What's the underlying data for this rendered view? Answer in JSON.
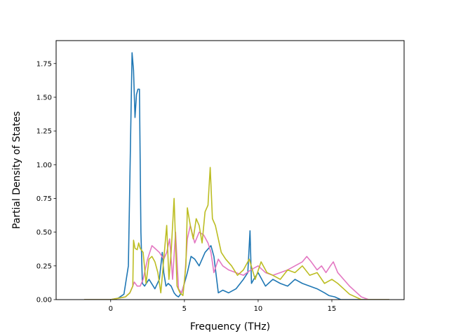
{
  "chart_data": {
    "type": "line",
    "title": "",
    "xlabel": "Frequency (THz)",
    "ylabel": "Partial Density of States",
    "xlim": [
      -3.7,
      19.9
    ],
    "ylim": [
      0.0,
      1.92
    ],
    "xticks": [
      0,
      5,
      10,
      15
    ],
    "yticks": [
      0.0,
      0.25,
      0.5,
      0.75,
      1.0,
      1.25,
      1.5,
      1.75
    ],
    "xtick_labels": [
      "0",
      "5",
      "10",
      "15"
    ],
    "ytick_labels": [
      "0.00",
      "0.25",
      "0.50",
      "0.75",
      "1.00",
      "1.25",
      "1.50",
      "1.75"
    ],
    "grid": false,
    "legend": "none",
    "series": [
      {
        "color": "#1f77b4",
        "x": [
          -1.8,
          0,
          0.5,
          0.9,
          1.2,
          1.35,
          1.45,
          1.55,
          1.65,
          1.75,
          1.85,
          1.95,
          2.05,
          2.15,
          2.3,
          2.6,
          3.0,
          3.3,
          3.5,
          3.6,
          3.75,
          3.9,
          4.1,
          4.3,
          4.45,
          4.6,
          4.8,
          5.0,
          5.2,
          5.45,
          5.7,
          6.0,
          6.4,
          6.8,
          7.0,
          7.3,
          7.6,
          8.0,
          8.5,
          9.0,
          9.3,
          9.45,
          9.55,
          9.7,
          10.0,
          10.5,
          11.0,
          11.5,
          12.0,
          12.5,
          13.0,
          13.5,
          14.0,
          14.5,
          14.8,
          15.2,
          15.6,
          16.0,
          16.5,
          17.0,
          17.5,
          18.0,
          18.9
        ],
        "y": [
          0.0,
          0.0,
          0.01,
          0.04,
          0.25,
          1.2,
          1.83,
          1.7,
          1.35,
          1.52,
          1.56,
          1.56,
          0.5,
          0.12,
          0.1,
          0.15,
          0.08,
          0.15,
          0.35,
          0.2,
          0.1,
          0.12,
          0.1,
          0.05,
          0.03,
          0.02,
          0.05,
          0.12,
          0.2,
          0.32,
          0.3,
          0.25,
          0.35,
          0.4,
          0.32,
          0.05,
          0.07,
          0.05,
          0.08,
          0.15,
          0.2,
          0.51,
          0.12,
          0.15,
          0.2,
          0.1,
          0.15,
          0.12,
          0.1,
          0.15,
          0.12,
          0.1,
          0.08,
          0.05,
          0.03,
          0.02,
          0.0,
          0.0,
          0.0,
          0.0,
          0.0,
          0.0,
          0.0
        ]
      },
      {
        "color": "#e377c2",
        "x": [
          -1.8,
          0,
          0.5,
          1.0,
          1.3,
          1.5,
          1.6,
          1.8,
          2.0,
          2.2,
          2.5,
          2.8,
          3.0,
          3.3,
          3.6,
          3.8,
          4.0,
          4.2,
          4.4,
          4.6,
          4.8,
          5.0,
          5.2,
          5.4,
          5.7,
          6.0,
          6.3,
          6.6,
          6.8,
          7.0,
          7.3,
          7.6,
          8.0,
          8.5,
          9.0,
          9.5,
          10.0,
          10.5,
          11.0,
          11.5,
          12.0,
          12.5,
          13.0,
          13.3,
          13.6,
          14.0,
          14.3,
          14.6,
          14.9,
          15.1,
          15.4,
          15.8,
          16.2,
          16.6,
          17.0,
          17.5,
          18.0,
          18.9
        ],
        "y": [
          0.0,
          0.0,
          0.01,
          0.02,
          0.05,
          0.1,
          0.13,
          0.1,
          0.1,
          0.15,
          0.3,
          0.4,
          0.38,
          0.35,
          0.3,
          0.35,
          0.45,
          0.15,
          0.5,
          0.08,
          0.05,
          0.12,
          0.45,
          0.55,
          0.42,
          0.5,
          0.48,
          0.42,
          0.35,
          0.2,
          0.3,
          0.25,
          0.22,
          0.2,
          0.18,
          0.22,
          0.25,
          0.2,
          0.18,
          0.2,
          0.22,
          0.25,
          0.28,
          0.32,
          0.28,
          0.22,
          0.25,
          0.2,
          0.25,
          0.28,
          0.2,
          0.15,
          0.1,
          0.06,
          0.02,
          0.0,
          0.0,
          0.0
        ]
      },
      {
        "color": "#bcbd22",
        "x": [
          -1.8,
          0,
          0.5,
          1.0,
          1.3,
          1.5,
          1.55,
          1.65,
          1.8,
          1.9,
          2.0,
          2.2,
          2.4,
          2.6,
          2.8,
          3.0,
          3.2,
          3.4,
          3.6,
          3.8,
          3.95,
          4.1,
          4.3,
          4.5,
          4.7,
          4.9,
          5.1,
          5.2,
          5.4,
          5.6,
          5.8,
          6.0,
          6.2,
          6.4,
          6.6,
          6.75,
          6.9,
          7.1,
          7.3,
          7.5,
          7.8,
          8.2,
          8.6,
          9.0,
          9.4,
          9.8,
          10.2,
          10.6,
          11.0,
          11.5,
          12.0,
          12.5,
          13.0,
          13.5,
          14.0,
          14.5,
          15.0,
          15.4,
          15.8,
          16.2,
          16.6,
          17.0,
          17.5,
          18.0,
          18.9
        ],
        "y": [
          0.0,
          0.0,
          0.01,
          0.02,
          0.05,
          0.1,
          0.44,
          0.38,
          0.37,
          0.42,
          0.38,
          0.35,
          0.12,
          0.3,
          0.32,
          0.28,
          0.2,
          0.05,
          0.3,
          0.55,
          0.15,
          0.35,
          0.75,
          0.1,
          0.05,
          0.03,
          0.25,
          0.68,
          0.55,
          0.45,
          0.6,
          0.55,
          0.42,
          0.65,
          0.7,
          0.98,
          0.6,
          0.55,
          0.45,
          0.35,
          0.3,
          0.25,
          0.18,
          0.22,
          0.3,
          0.15,
          0.28,
          0.2,
          0.18,
          0.15,
          0.22,
          0.2,
          0.25,
          0.18,
          0.2,
          0.12,
          0.15,
          0.12,
          0.08,
          0.04,
          0.02,
          0.0,
          0.0,
          0.0,
          0.0
        ]
      }
    ]
  }
}
